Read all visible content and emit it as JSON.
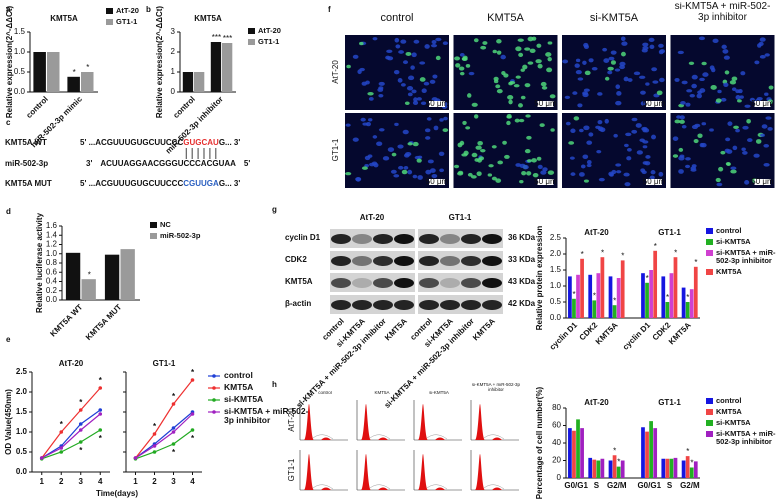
{
  "panel_labels": [
    "a",
    "b",
    "c",
    "d",
    "e",
    "f",
    "g",
    "h"
  ],
  "chart_data": [
    {
      "type": "bar",
      "title": "KMT5A",
      "ylabel": "Relative expression(2^-ΔΔCt)",
      "categories": [
        "control",
        "miR-502-3p mimic"
      ],
      "series": [
        {
          "name": "AtT-20",
          "color": "#111111",
          "values": [
            1,
            0.38
          ],
          "stars": [
            null,
            "*"
          ]
        },
        {
          "name": "GT1-1",
          "color": "#9a9a9a",
          "values": [
            1,
            0.5
          ],
          "stars": [
            null,
            "*"
          ]
        }
      ],
      "ylim": [
        0,
        1.5
      ],
      "yticks": [
        {
          "value": 0,
          "label": "0.0"
        },
        0.5,
        {
          "value": 1,
          "label": "1.0"
        },
        1.5
      ]
    },
    {
      "type": "bar",
      "title": "KMT5A",
      "ylabel": "Relative expression(2^-ΔΔCt)",
      "categories": [
        "control",
        "miR-502-3p inhibitor"
      ],
      "series": [
        {
          "name": "AtT-20",
          "color": "#111111",
          "values": [
            1,
            2.5
          ],
          "stars": [
            null,
            "***"
          ]
        },
        {
          "name": "GT1-1",
          "color": "#9a9a9a",
          "values": [
            1,
            2.45
          ],
          "stars": [
            null,
            "***"
          ]
        }
      ],
      "ylim": [
        0,
        3
      ],
      "yticks": [
        0,
        1,
        2,
        3
      ]
    },
    {
      "type": "bar",
      "ylabel": "Relative luciferase activity",
      "categories": [
        "KMT5A WT",
        "KMT5A MUT"
      ],
      "series": [
        {
          "name": "NC",
          "color": "#111111",
          "values": [
            1.02,
            0.98
          ],
          "stars": [
            null,
            null
          ]
        },
        {
          "name": "miR-502-3p",
          "color": "#9a9a9a",
          "values": [
            0.45,
            1.1
          ],
          "stars": [
            "*",
            null
          ]
        }
      ],
      "ylim": [
        0,
        1.6
      ],
      "yticks": [
        {
          "value": 0,
          "label": "0.0"
        },
        0.2,
        0.4,
        0.6,
        0.8,
        {
          "value": 1,
          "label": "1.0"
        },
        1.2,
        1.4,
        1.6
      ]
    },
    {
      "type": "line",
      "ylabel": "OD Value(450nm)",
      "xlabel": "Time(days)",
      "panels": [
        "AtT-20",
        "GT1-1"
      ],
      "x": [
        1,
        2,
        3,
        4
      ],
      "xlim": [
        0.5,
        4.5
      ],
      "xticks": [
        1,
        2,
        3,
        4
      ],
      "ylim": [
        0,
        2.5
      ],
      "yticks": [
        {
          "value": 0,
          "label": "0.0"
        },
        0.5,
        {
          "value": 1,
          "label": "1.0"
        },
        1.5,
        {
          "value": 2,
          "label": "2.0"
        },
        2.5
      ],
      "series": [
        {
          "name": "control",
          "color": "#1f3fd6",
          "values": [
            [
              0.35,
              0.65,
              1.2,
              1.55
            ],
            [
              0.35,
              0.7,
              1.1,
              1.5
            ]
          ],
          "stars": [
            [
              null,
              null,
              null,
              null
            ],
            [
              null,
              null,
              null,
              null
            ]
          ]
        },
        {
          "name": "KMT5A",
          "color": "#ee3030",
          "values": [
            [
              0.35,
              1.0,
              1.55,
              2.1
            ],
            [
              0.35,
              0.95,
              1.7,
              2.3
            ]
          ],
          "stars": [
            [
              null,
              "*",
              "*",
              "*"
            ],
            [
              null,
              "*",
              "*",
              "*"
            ]
          ]
        },
        {
          "name": "si-KMT5A",
          "color": "#22aa22",
          "values": [
            [
              0.33,
              0.5,
              0.75,
              1.05
            ],
            [
              0.33,
              0.5,
              0.7,
              1.05
            ]
          ],
          "stars": [
            [
              null,
              null,
              "*",
              "*"
            ],
            [
              null,
              null,
              "*",
              "*"
            ]
          ]
        },
        {
          "name": "si-KMT5A + miR-502-3p inhibitor",
          "color": "#a020c0",
          "values": [
            [
              0.35,
              0.6,
              1.05,
              1.45
            ],
            [
              0.35,
              0.65,
              1.0,
              1.45
            ]
          ],
          "stars": [
            [
              null,
              null,
              null,
              null
            ],
            [
              null,
              null,
              null,
              null
            ]
          ]
        }
      ]
    },
    {
      "type": "bar",
      "ylabel": "Relative protein expression",
      "group_labels": [
        "AtT-20",
        "GT1-1"
      ],
      "categories": [
        "cyclin D1",
        "CDK2",
        "KMT5A",
        "cyclin D1",
        "CDK2",
        "KMT5A"
      ],
      "series": [
        {
          "name": "control",
          "color": "#1515e0",
          "values": [
            1.3,
            1.35,
            1.3,
            1.4,
            1.3,
            0.95
          ],
          "stars": [
            null,
            null,
            null,
            null,
            null,
            null
          ]
        },
        {
          "name": "si-KMT5A",
          "color": "#22b022",
          "values": [
            0.6,
            0.55,
            0.4,
            1.1,
            0.5,
            0.5
          ],
          "stars": [
            "*",
            "*",
            "*",
            "*",
            "*",
            "*"
          ]
        },
        {
          "name": "si-KMT5A + miR-502-3p inhibitor",
          "color": "#d040d0",
          "values": [
            1.35,
            1.4,
            1.25,
            1.5,
            1.4,
            0.9
          ],
          "stars": [
            null,
            null,
            null,
            null,
            null,
            null
          ]
        },
        {
          "name": "KMT5A",
          "color": "#f04545",
          "values": [
            1.85,
            1.9,
            1.8,
            2.1,
            1.9,
            1.6
          ],
          "stars": [
            "*",
            "*",
            "*",
            "*",
            "*",
            "*"
          ]
        }
      ],
      "ylim": [
        0,
        2.5
      ],
      "yticks": [
        {
          "value": 0,
          "label": "0.0"
        },
        0.5,
        {
          "value": 1,
          "label": "1.0"
        },
        1.5,
        {
          "value": 2,
          "label": "2.0"
        },
        2.5
      ]
    },
    {
      "type": "bar",
      "ylabel": "Percentage of cell number(%)",
      "group_labels": [
        "AtT-20",
        "GT1-1"
      ],
      "categories": [
        "G0/G1",
        "S",
        "G2/M",
        "G0/G1",
        "S",
        "G2/M"
      ],
      "series": [
        {
          "name": "control",
          "color": "#1515e0",
          "values": [
            57,
            23,
            20,
            58,
            22,
            20
          ],
          "stars": [
            null,
            null,
            null,
            null,
            null,
            null
          ]
        },
        {
          "name": "KMT5A",
          "color": "#f04545",
          "values": [
            54,
            21,
            26,
            53,
            22,
            25
          ],
          "stars": [
            null,
            null,
            "*",
            null,
            null,
            "*"
          ]
        },
        {
          "name": "si-KMT5A",
          "color": "#22b022",
          "values": [
            67,
            20,
            13,
            65,
            22,
            12
          ],
          "stars": [
            null,
            null,
            "*",
            null,
            null,
            "*"
          ]
        },
        {
          "name": "si-KMT5A + miR-502-3p inhibitor",
          "color": "#a020c0",
          "values": [
            57,
            22,
            20,
            57,
            23,
            19
          ],
          "stars": [
            null,
            null,
            null,
            null,
            null,
            null
          ]
        }
      ],
      "ylim": [
        0,
        80
      ],
      "yticks": [
        0,
        20,
        40,
        60,
        80
      ]
    }
  ],
  "sequences": [
    {
      "label": "KMT5A WT",
      "color": "#e53030",
      "parts": [
        "5' ...ACGUUUGUGCUUCCC",
        "GUGCAU",
        "G... 3'"
      ]
    },
    {
      "label": "miR-502-3p",
      "color": "#111111",
      "parts": [
        "3'",
        "ACUUAGGAACGGGUCCCACGUAA",
        "5'"
      ]
    },
    {
      "label": "KMT5A MUT",
      "color": "#2a5fc0",
      "parts": [
        "5' ...ACGUUUGUGCUUCCC",
        "CGUUGA",
        "G... 3'"
      ]
    }
  ],
  "micrographs": {
    "columns": [
      "control",
      "KMT5A",
      "si-KMT5A",
      "si-KMT5A + miR-502-3p inhibitor"
    ],
    "rows": [
      "AtT-20",
      "GT1-1"
    ],
    "scale_bar": "50 μm"
  },
  "blot": {
    "groups": [
      "AtT-20",
      "GT1-1"
    ],
    "proteins": [
      "cyclin D1",
      "CDK2",
      "KMT5A",
      "β-actin"
    ],
    "sizes": [
      "36 KDa",
      "33 KDa",
      "43 KDa",
      "42 KDa"
    ],
    "lanes": [
      "control",
      "si-KMT5A",
      "si-KMT5A + miR-502-3p inhibitor",
      "KMT5A"
    ]
  },
  "flow": {
    "columns": [
      "control",
      "KMT5A",
      "si-KMT5A",
      "si-KMT5A + miR-502-3p inhibitor"
    ],
    "rows": [
      "AtT-20",
      "GT1-1"
    ]
  }
}
